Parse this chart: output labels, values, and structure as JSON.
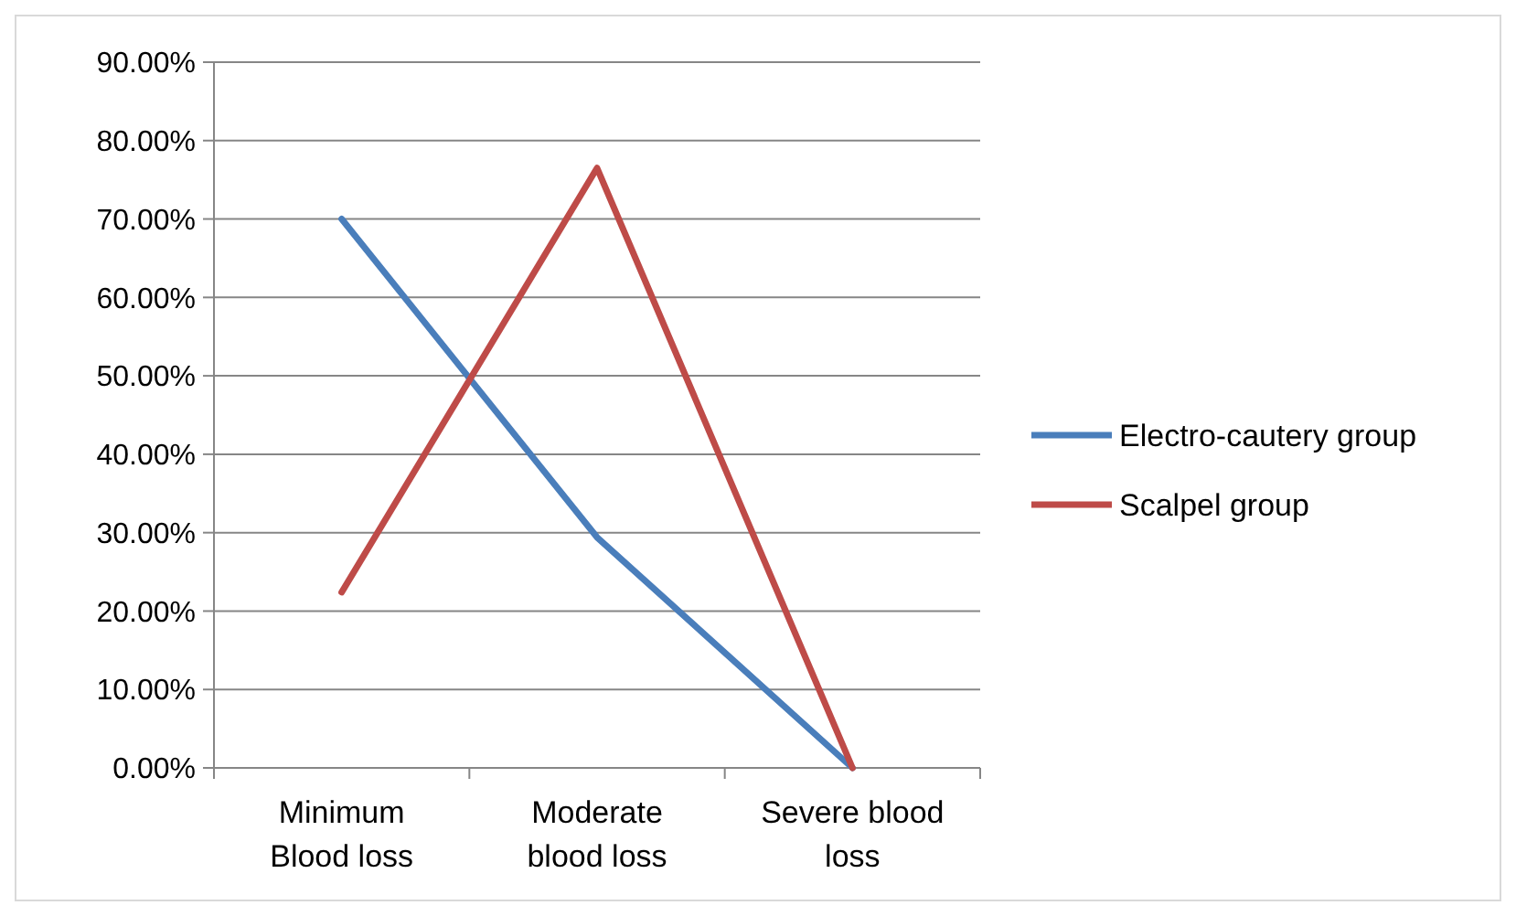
{
  "chart_data": {
    "type": "line",
    "categories": [
      "Minimum Blood loss",
      "Moderate blood loss",
      "Severe blood loss"
    ],
    "series": [
      {
        "name": "Electro-cautery group",
        "color": "#4a7ebb",
        "values": [
          70.0,
          29.4,
          0
        ]
      },
      {
        "name": "Scalpel group",
        "color": "#be4b48",
        "values": [
          22.4,
          76.5,
          0
        ]
      }
    ],
    "ylim": [
      0,
      90
    ],
    "yticks": [
      {
        "value": 0,
        "label": "0.00%"
      },
      {
        "value": 10,
        "label": "10.00%"
      },
      {
        "value": 20,
        "label": "20.00%"
      },
      {
        "value": 30,
        "label": "30.00%"
      },
      {
        "value": 40,
        "label": "40.00%"
      },
      {
        "value": 50,
        "label": "50.00%"
      },
      {
        "value": 60,
        "label": "60.00%"
      },
      {
        "value": 70,
        "label": "70.00%"
      },
      {
        "value": 80,
        "label": "80.00%"
      },
      {
        "value": 90,
        "label": "90.00%"
      }
    ],
    "grid": "y",
    "legend": "right",
    "marker": "none",
    "line_style": "solid"
  }
}
